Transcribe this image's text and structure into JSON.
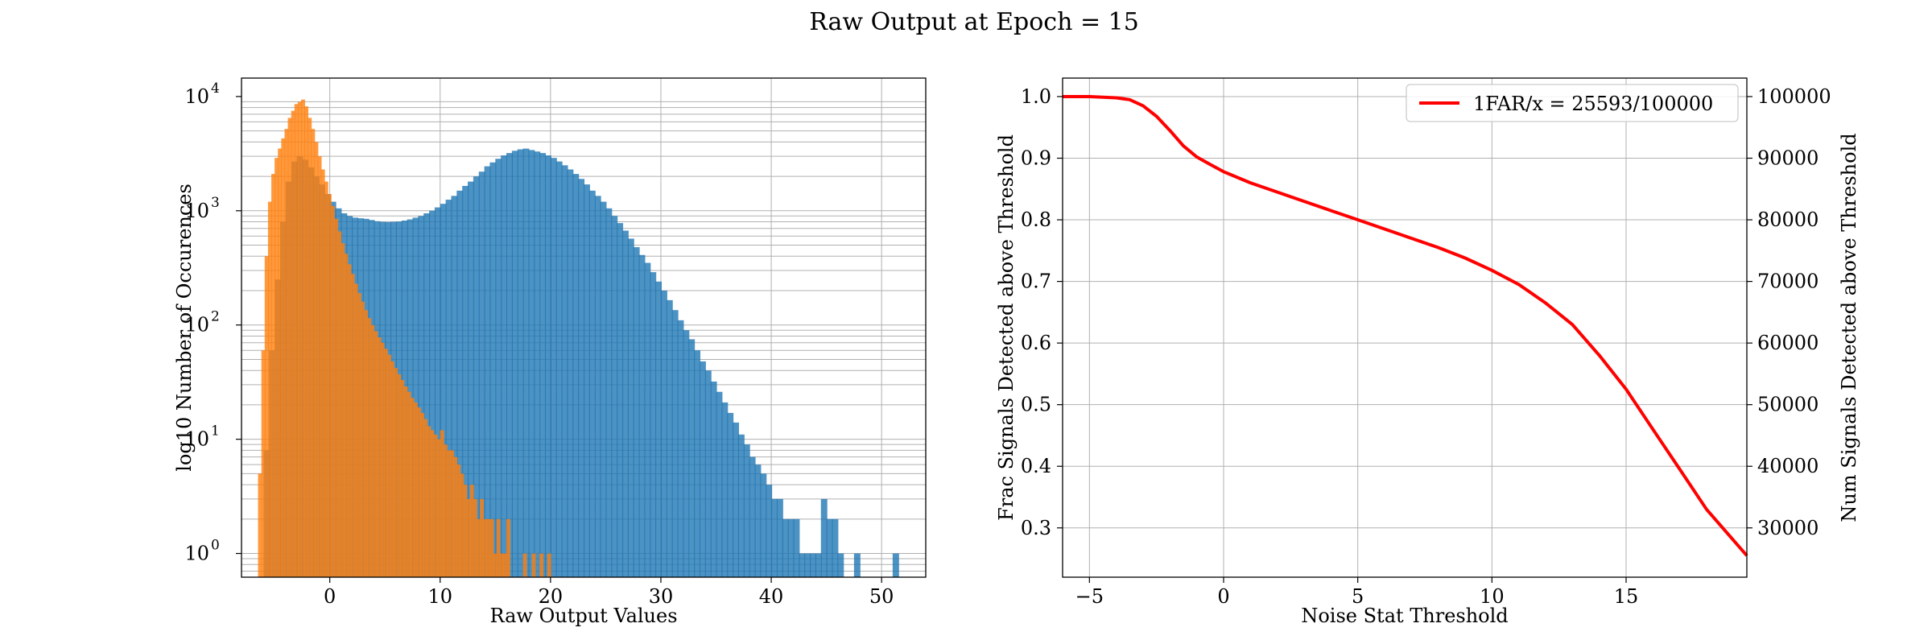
{
  "figure": {
    "title": "Raw Output at Epoch = 15"
  },
  "colors": {
    "signal": "#1f77b4",
    "noise": "#ff7f0e",
    "curve": "#ff0000",
    "grid": "#b0b0b0"
  },
  "chart_data": [
    {
      "type": "bar",
      "scale_y": "log",
      "xlabel": "Raw Output Values",
      "ylabel": "log10 Number of Occurences",
      "xlim": [
        -8,
        54
      ],
      "ylim": [
        0.62,
        14500
      ],
      "xticks": [
        0,
        10,
        20,
        30,
        40,
        50
      ],
      "xtick_labels": [
        "0",
        "10",
        "20",
        "30",
        "40",
        "50"
      ],
      "yticks": [
        1,
        10,
        100,
        1000,
        10000
      ],
      "ytick_labels": [
        "10",
        "10",
        "10",
        "10",
        "10"
      ],
      "ytick_exponents": [
        "0",
        "1",
        "2",
        "3",
        "4"
      ],
      "grid": true,
      "series": [
        {
          "bin_width": 0.55,
          "bins": [
            [
              -6.0,
              8
            ],
            [
              -5.5,
              60
            ],
            [
              -5.0,
              250
            ],
            [
              -4.5,
              800
            ],
            [
              -4.0,
              1800
            ],
            [
              -3.5,
              2700
            ],
            [
              -3.0,
              3000
            ],
            [
              -2.5,
              2800
            ],
            [
              -2.0,
              2400
            ],
            [
              -1.5,
              2000
            ],
            [
              -1.0,
              1700
            ],
            [
              -0.5,
              1400
            ],
            [
              0.0,
              1200
            ],
            [
              0.5,
              1050
            ],
            [
              1.0,
              950
            ],
            [
              1.5,
              900
            ],
            [
              2.0,
              870
            ],
            [
              2.5,
              860
            ],
            [
              3.0,
              850
            ],
            [
              3.5,
              830
            ],
            [
              4.0,
              810
            ],
            [
              4.5,
              800
            ],
            [
              5.0,
              795
            ],
            [
              5.5,
              800
            ],
            [
              6.0,
              805
            ],
            [
              6.5,
              820
            ],
            [
              7.0,
              840
            ],
            [
              7.5,
              870
            ],
            [
              8.0,
              900
            ],
            [
              8.5,
              950
            ],
            [
              9.0,
              1000
            ],
            [
              9.5,
              1070
            ],
            [
              10.0,
              1150
            ],
            [
              10.5,
              1250
            ],
            [
              11.0,
              1350
            ],
            [
              11.5,
              1500
            ],
            [
              12.0,
              1650
            ],
            [
              12.5,
              1800
            ],
            [
              13.0,
              2000
            ],
            [
              13.5,
              2200
            ],
            [
              14.0,
              2450
            ],
            [
              14.5,
              2650
            ],
            [
              15.0,
              2850
            ],
            [
              15.5,
              3050
            ],
            [
              16.0,
              3200
            ],
            [
              16.5,
              3350
            ],
            [
              17.0,
              3450
            ],
            [
              17.5,
              3500
            ],
            [
              18.0,
              3400
            ],
            [
              18.5,
              3300
            ],
            [
              19.0,
              3200
            ],
            [
              19.5,
              3050
            ],
            [
              20.0,
              2900
            ],
            [
              20.5,
              2700
            ],
            [
              21.0,
              2500
            ],
            [
              21.5,
              2300
            ],
            [
              22.0,
              2100
            ],
            [
              22.5,
              1900
            ],
            [
              23.0,
              1700
            ],
            [
              23.5,
              1500
            ],
            [
              24.0,
              1350
            ],
            [
              24.5,
              1200
            ],
            [
              25.0,
              1050
            ],
            [
              25.5,
              900
            ],
            [
              26.0,
              780
            ],
            [
              26.5,
              670
            ],
            [
              27.0,
              570
            ],
            [
              27.5,
              480
            ],
            [
              28.0,
              410
            ],
            [
              28.5,
              350
            ],
            [
              29.0,
              290
            ],
            [
              29.5,
              240
            ],
            [
              30.0,
              200
            ],
            [
              30.5,
              165
            ],
            [
              31.0,
              135
            ],
            [
              31.5,
              110
            ],
            [
              32.0,
              90
            ],
            [
              32.5,
              75
            ],
            [
              33.0,
              60
            ],
            [
              33.5,
              48
            ],
            [
              34.0,
              40
            ],
            [
              34.5,
              32
            ],
            [
              35.0,
              26
            ],
            [
              35.5,
              21
            ],
            [
              36.0,
              17
            ],
            [
              36.5,
              14
            ],
            [
              37.0,
              11
            ],
            [
              37.5,
              9
            ],
            [
              38.0,
              7
            ],
            [
              38.5,
              6
            ],
            [
              39.0,
              5
            ],
            [
              39.5,
              4
            ],
            [
              40.0,
              3
            ],
            [
              40.5,
              3
            ],
            [
              41.0,
              2
            ],
            [
              41.5,
              2
            ],
            [
              42.0,
              2
            ],
            [
              42.5,
              1
            ],
            [
              43.0,
              1
            ],
            [
              43.5,
              1
            ],
            [
              44.0,
              1
            ],
            [
              44.5,
              3
            ],
            [
              45.0,
              2
            ],
            [
              45.5,
              2
            ],
            [
              46.0,
              1
            ],
            [
              47.5,
              1
            ],
            [
              51.0,
              1
            ]
          ]
        },
        {
          "bin_width": 0.33,
          "bins": [
            [
              -6.5,
              5
            ],
            [
              -6.2,
              60
            ],
            [
              -5.9,
              400
            ],
            [
              -5.6,
              1200
            ],
            [
              -5.3,
              2100
            ],
            [
              -5.0,
              2900
            ],
            [
              -4.7,
              3500
            ],
            [
              -4.4,
              4300
            ],
            [
              -4.1,
              5200
            ],
            [
              -3.8,
              6500
            ],
            [
              -3.5,
              7500
            ],
            [
              -3.2,
              8600
            ],
            [
              -2.9,
              9000
            ],
            [
              -2.6,
              9400
            ],
            [
              -2.3,
              8200
            ],
            [
              -2.0,
              6500
            ],
            [
              -1.7,
              5200
            ],
            [
              -1.4,
              4000
            ],
            [
              -1.1,
              3000
            ],
            [
              -0.8,
              2300
            ],
            [
              -0.5,
              1800
            ],
            [
              -0.2,
              1400
            ],
            [
              0.1,
              1100
            ],
            [
              0.4,
              850
            ],
            [
              0.7,
              660
            ],
            [
              1.0,
              520
            ],
            [
              1.3,
              420
            ],
            [
              1.6,
              340
            ],
            [
              1.9,
              280
            ],
            [
              2.2,
              230
            ],
            [
              2.5,
              190
            ],
            [
              2.8,
              160
            ],
            [
              3.1,
              135
            ],
            [
              3.4,
              115
            ],
            [
              3.7,
              100
            ],
            [
              4.0,
              88
            ],
            [
              4.3,
              78
            ],
            [
              4.6,
              70
            ],
            [
              4.9,
              62
            ],
            [
              5.2,
              55
            ],
            [
              5.5,
              48
            ],
            [
              5.8,
              42
            ],
            [
              6.1,
              37
            ],
            [
              6.4,
              33
            ],
            [
              6.7,
              29
            ],
            [
              7.0,
              26
            ],
            [
              7.3,
              23
            ],
            [
              7.6,
              21
            ],
            [
              7.9,
              19
            ],
            [
              8.2,
              17
            ],
            [
              8.5,
              15
            ],
            [
              8.8,
              13
            ],
            [
              9.1,
              12
            ],
            [
              9.4,
              11
            ],
            [
              9.7,
              10
            ],
            [
              10.0,
              12
            ],
            [
              10.3,
              9
            ],
            [
              10.6,
              8
            ],
            [
              10.9,
              8
            ],
            [
              11.2,
              7
            ],
            [
              11.5,
              6
            ],
            [
              11.8,
              5
            ],
            [
              12.1,
              4
            ],
            [
              12.4,
              3
            ],
            [
              12.7,
              4
            ],
            [
              13.0,
              3
            ],
            [
              13.3,
              2
            ],
            [
              13.6,
              3
            ],
            [
              13.9,
              2
            ],
            [
              14.2,
              2
            ],
            [
              14.5,
              2
            ],
            [
              14.8,
              1
            ],
            [
              15.1,
              2
            ],
            [
              15.4,
              1
            ],
            [
              15.7,
              1
            ],
            [
              16.0,
              2
            ],
            [
              17.5,
              1
            ],
            [
              18.3,
              1
            ],
            [
              19.0,
              1
            ],
            [
              19.7,
              1
            ]
          ]
        }
      ]
    },
    {
      "type": "line",
      "xlabel": "Noise Stat Threshold",
      "ylabel": "Frac Signals Detected above Threshold",
      "ylabel_right": "Num Signals Detected above Threshold",
      "xlim": [
        -6,
        19.5
      ],
      "ylim": [
        0.22,
        1.03
      ],
      "xticks": [
        -5,
        0,
        5,
        10,
        15
      ],
      "xtick_labels": [
        "−5",
        "0",
        "5",
        "10",
        "15"
      ],
      "yticks": [
        0.3,
        0.4,
        0.5,
        0.6,
        0.7,
        0.8,
        0.9,
        1.0
      ],
      "ytick_labels": [
        "0.3",
        "0.4",
        "0.5",
        "0.6",
        "0.7",
        "0.8",
        "0.9",
        "1.0"
      ],
      "yticks_right": [
        30000,
        40000,
        50000,
        60000,
        70000,
        80000,
        90000,
        100000
      ],
      "ytick_labels_right": [
        "30000",
        "40000",
        "50000",
        "60000",
        "70000",
        "80000",
        "90000",
        "100000"
      ],
      "grid": true,
      "legend": "top-right",
      "series": [
        {
          "name": "1FAR/x = 25593/100000",
          "x": [
            -6,
            -5,
            -4,
            -3.5,
            -3,
            -2.5,
            -2,
            -1.5,
            -1,
            -0.5,
            0,
            1,
            2,
            3,
            4,
            5,
            6,
            7,
            8,
            9,
            10,
            11,
            12,
            13,
            14,
            15,
            16,
            17,
            18,
            19,
            19.5
          ],
          "y": [
            1.0,
            1.0,
            0.998,
            0.995,
            0.985,
            0.968,
            0.945,
            0.92,
            0.902,
            0.89,
            0.878,
            0.86,
            0.845,
            0.83,
            0.815,
            0.8,
            0.785,
            0.77,
            0.755,
            0.738,
            0.718,
            0.695,
            0.665,
            0.63,
            0.58,
            0.525,
            0.46,
            0.395,
            0.33,
            0.28,
            0.255
          ]
        }
      ]
    }
  ]
}
